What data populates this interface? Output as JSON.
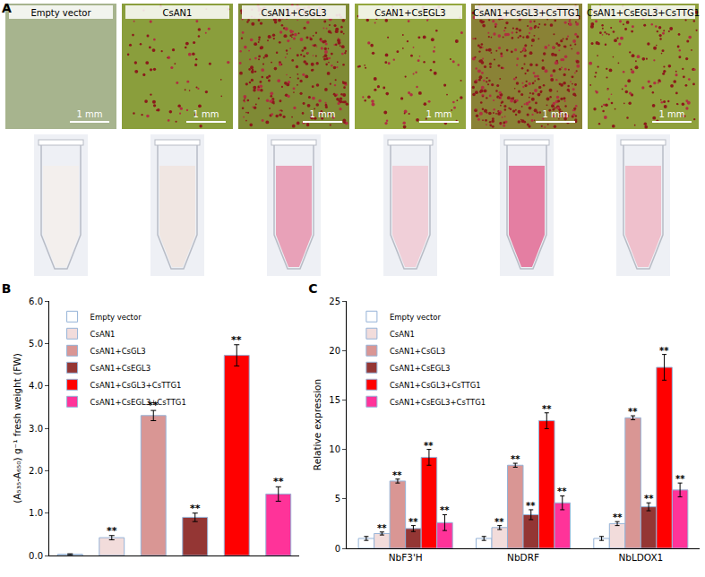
{
  "images": {
    "label": "A",
    "captions": [
      "Empty vector",
      "CsAN1",
      "CsAN1+CsGL3",
      "CsAN1+CsEGL3",
      "CsAN1+CsGL3+CsTTG1",
      "CsAN1+CsEGL3+CsTTG1"
    ],
    "scale_bar": "1 mm"
  },
  "chart_data": [
    {
      "type": "bar",
      "title": "B",
      "y_label": "(A₅₃₅-A₆₅₀) g⁻¹ fresh weight (FW)",
      "categories": [
        "Empty vector",
        "CsAN1",
        "CsAN1+CsGL3",
        "CsAN1+CsEGL3",
        "CsAN1+CsGL3+CsTTG1",
        "CsAN1+CsEGL3+CsTTG1"
      ],
      "values": [
        0.03,
        0.42,
        3.3,
        0.9,
        4.72,
        1.45
      ],
      "errors": [
        0.01,
        0.05,
        0.12,
        0.1,
        0.25,
        0.17
      ],
      "significance": [
        null,
        "**",
        "**",
        "**",
        "**",
        "**"
      ],
      "colors": [
        "#ffffff",
        "#f2dcdb",
        "#d99694",
        "#943634",
        "#ff0000",
        "#ff3399"
      ],
      "ylim": [
        0,
        6
      ],
      "yticks": [
        {
          "value": 0,
          "label": "0.0"
        },
        {
          "value": 1,
          "label": "1.0"
        },
        {
          "value": 2,
          "label": "2.0"
        },
        {
          "value": 3,
          "label": "3.0"
        },
        {
          "value": 4,
          "label": "4.0"
        },
        {
          "value": 5,
          "label": "5.0"
        },
        {
          "value": 6,
          "label": "6.0"
        }
      ],
      "grid": false,
      "legend": "upper left",
      "tick_labels": "y"
    },
    {
      "type": "bar",
      "title": "C",
      "y_label": "Relative expression",
      "categories": [
        "NbF3'H",
        "NbDRF",
        "NbLDOX1"
      ],
      "series": [
        {
          "name": "Empty vector",
          "color": "#ffffff",
          "values": [
            1.0,
            1.0,
            1.0
          ],
          "errors": [
            0.2,
            0.2,
            0.2
          ],
          "significance": [
            null,
            null,
            null
          ]
        },
        {
          "name": "CsAN1",
          "color": "#f2dcdb",
          "values": [
            1.5,
            2.1,
            2.5
          ],
          "errors": [
            0.15,
            0.2,
            0.2
          ],
          "significance": [
            "**",
            "**",
            "**"
          ]
        },
        {
          "name": "CsAN1+CsGL3",
          "color": "#d99694",
          "values": [
            6.8,
            8.4,
            13.2
          ],
          "errors": [
            0.2,
            0.2,
            0.2
          ],
          "significance": [
            "**",
            "**",
            "**"
          ]
        },
        {
          "name": "CsAN1+CsEGL3",
          "color": "#943634",
          "values": [
            2.0,
            3.4,
            4.2
          ],
          "errors": [
            0.3,
            0.5,
            0.4
          ],
          "significance": [
            "**",
            "**",
            "**"
          ]
        },
        {
          "name": "CsAN1+CsGL3+CsTTG1",
          "color": "#ff0000",
          "values": [
            9.2,
            12.9,
            18.3
          ],
          "errors": [
            0.8,
            0.8,
            1.3
          ],
          "significance": [
            "**",
            "**",
            "**"
          ]
        },
        {
          "name": "CsAN1+CsEGL3+CsTTG1",
          "color": "#ff3399",
          "values": [
            2.6,
            4.6,
            5.9
          ],
          "errors": [
            0.8,
            0.7,
            0.7
          ],
          "significance": [
            "**",
            "**",
            "**"
          ]
        }
      ],
      "ylim": [
        0,
        25
      ],
      "yticks": [
        0,
        5,
        10,
        15,
        20,
        25
      ],
      "grid": false,
      "legend": "upper left"
    }
  ]
}
